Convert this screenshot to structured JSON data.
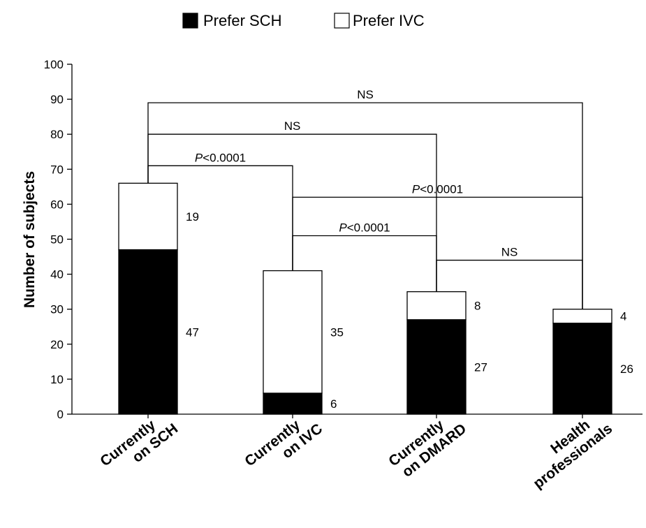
{
  "chart_data": {
    "type": "bar",
    "stacked": true,
    "categories": [
      [
        "Currently",
        "on SCH"
      ],
      [
        "Currently",
        "on IVC"
      ],
      [
        "Currently",
        "on DMARD"
      ],
      [
        "Health",
        "professionals"
      ]
    ],
    "series": [
      {
        "name": "Prefer SCH",
        "color": "#000000",
        "values": [
          47,
          6,
          27,
          26
        ]
      },
      {
        "name": "Prefer IVC",
        "color": "#ffffff",
        "values": [
          19,
          35,
          8,
          4
        ]
      }
    ],
    "ylabel": "Number of subjects",
    "xlabel": "",
    "ylim": [
      0,
      100
    ],
    "yticks": [
      "0",
      "10",
      "20",
      "30",
      "40",
      "50",
      "60",
      "70",
      "80",
      "90",
      "100"
    ],
    "legend": "top-center",
    "grid": false,
    "comparisons": [
      {
        "from": 0,
        "to": 3,
        "y": 89,
        "label": "NS"
      },
      {
        "from": 0,
        "to": 2,
        "y": 80,
        "label": "NS"
      },
      {
        "from": 0,
        "to": 1,
        "y": 71,
        "label_p": "P",
        "label_rest": "<0.0001"
      },
      {
        "from": 1,
        "to": 3,
        "y": 62,
        "label_p": "P",
        "label_rest": "<0.0001"
      },
      {
        "from": 1,
        "to": 2,
        "y": 51,
        "label_p": "P",
        "label_rest": "<0.0001"
      },
      {
        "from": 2,
        "to": 3,
        "y": 44,
        "label": "NS"
      }
    ]
  }
}
